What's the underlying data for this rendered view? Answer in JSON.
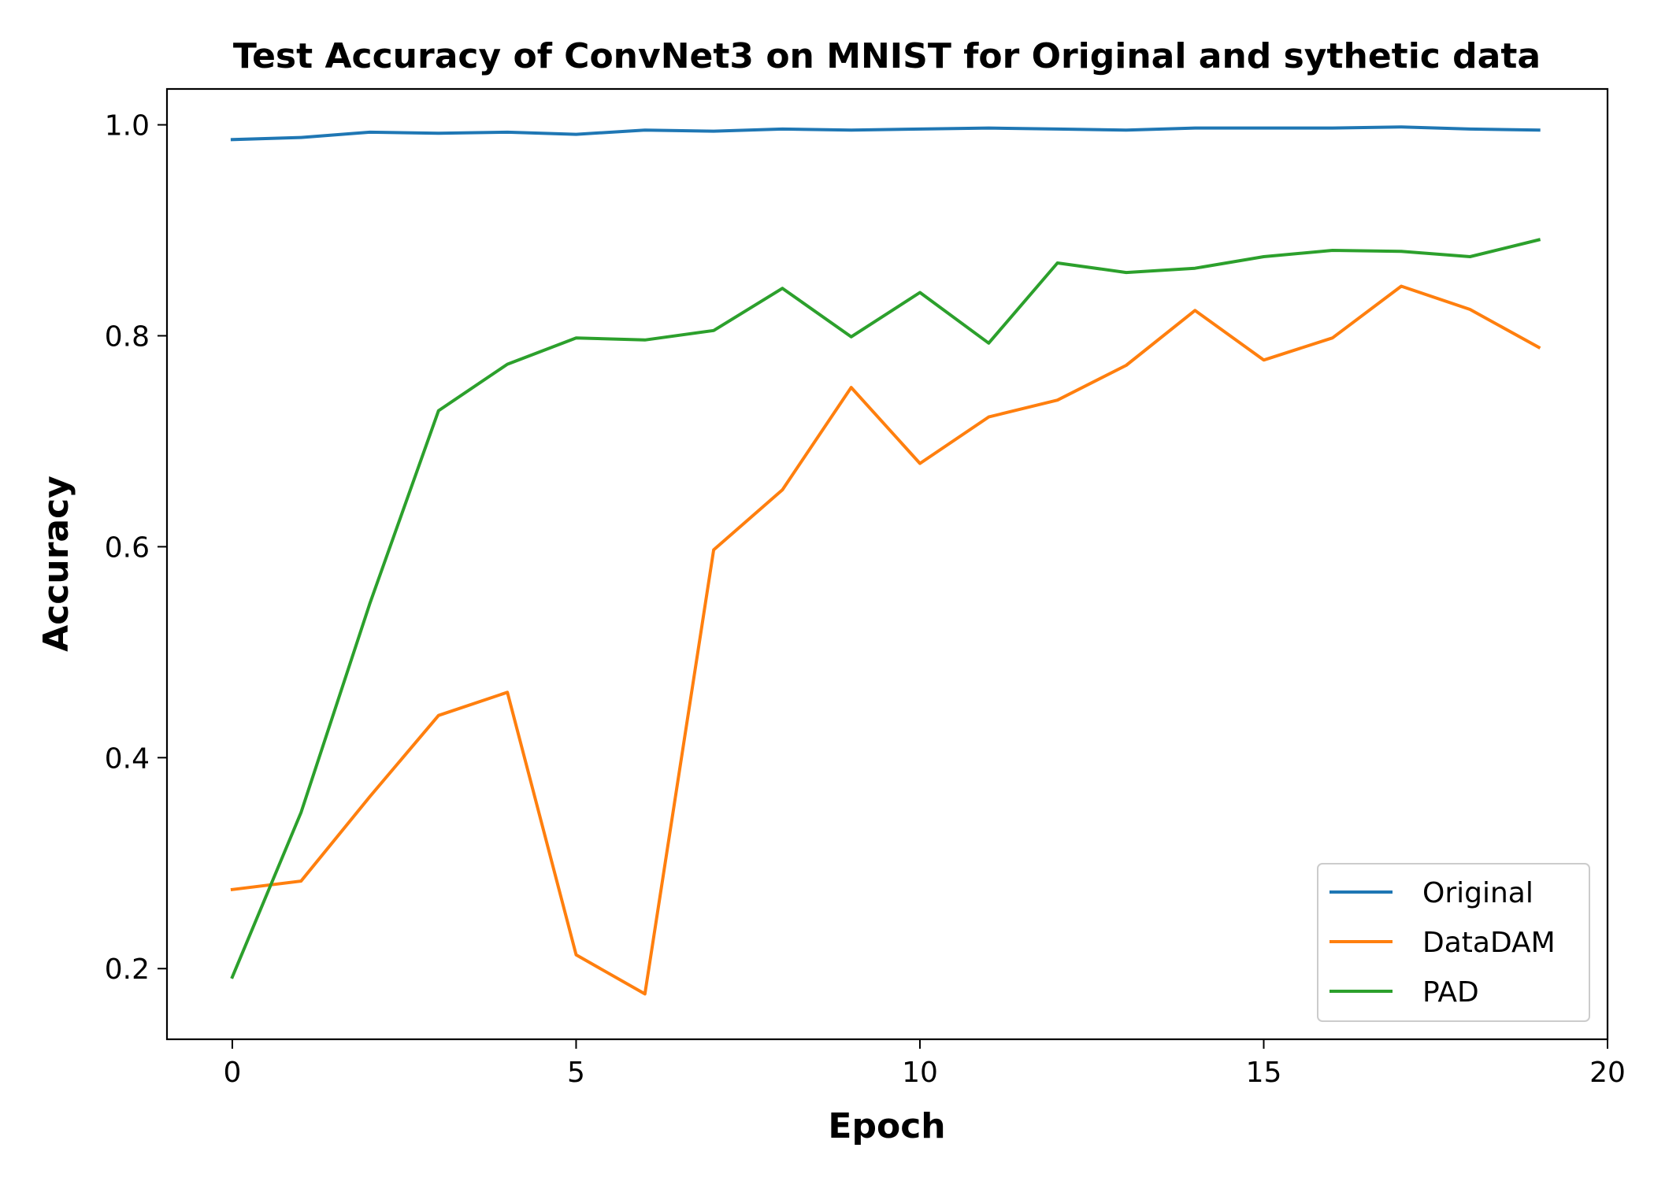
{
  "chart_data": {
    "type": "line",
    "title": "Test Accuracy of ConvNet3 on MNIST for Original and sythetic data",
    "xlabel": "Epoch",
    "ylabel": "Accuracy",
    "xlim": [
      -0.95,
      20
    ],
    "ylim": [
      0.133,
      1.034
    ],
    "xticks": [
      0,
      5,
      10,
      15,
      20
    ],
    "xtick_labels": [
      "0",
      "5",
      "10",
      "15",
      "20"
    ],
    "yticks": [
      0.2,
      0.4,
      0.6,
      0.8,
      1.0
    ],
    "ytick_labels": [
      "0.2",
      "0.4",
      "0.6",
      "0.8",
      "1.0"
    ],
    "grid": false,
    "legend_position": "lower-right",
    "x": [
      0,
      1,
      2,
      3,
      4,
      5,
      6,
      7,
      8,
      9,
      10,
      11,
      12,
      13,
      14,
      15,
      16,
      17,
      18,
      19
    ],
    "series": [
      {
        "name": "Original",
        "color": "#1f77b4",
        "values": [
          0.986,
          0.988,
          0.993,
          0.992,
          0.993,
          0.991,
          0.995,
          0.994,
          0.996,
          0.995,
          0.996,
          0.997,
          0.996,
          0.995,
          0.997,
          0.997,
          0.997,
          0.998,
          0.996,
          0.995
        ]
      },
      {
        "name": "DataDAM",
        "color": "#ff7f0e",
        "values": [
          0.275,
          0.283,
          0.363,
          0.44,
          0.462,
          0.213,
          0.176,
          0.597,
          0.654,
          0.751,
          0.679,
          0.723,
          0.739,
          0.772,
          0.824,
          0.777,
          0.798,
          0.847,
          0.825,
          0.789
        ]
      },
      {
        "name": "PAD",
        "color": "#2ca02c",
        "values": [
          0.192,
          0.348,
          0.546,
          0.729,
          0.773,
          0.798,
          0.796,
          0.805,
          0.845,
          0.799,
          0.841,
          0.793,
          0.869,
          0.86,
          0.864,
          0.875,
          0.881,
          0.88,
          0.875,
          0.891
        ]
      }
    ]
  }
}
